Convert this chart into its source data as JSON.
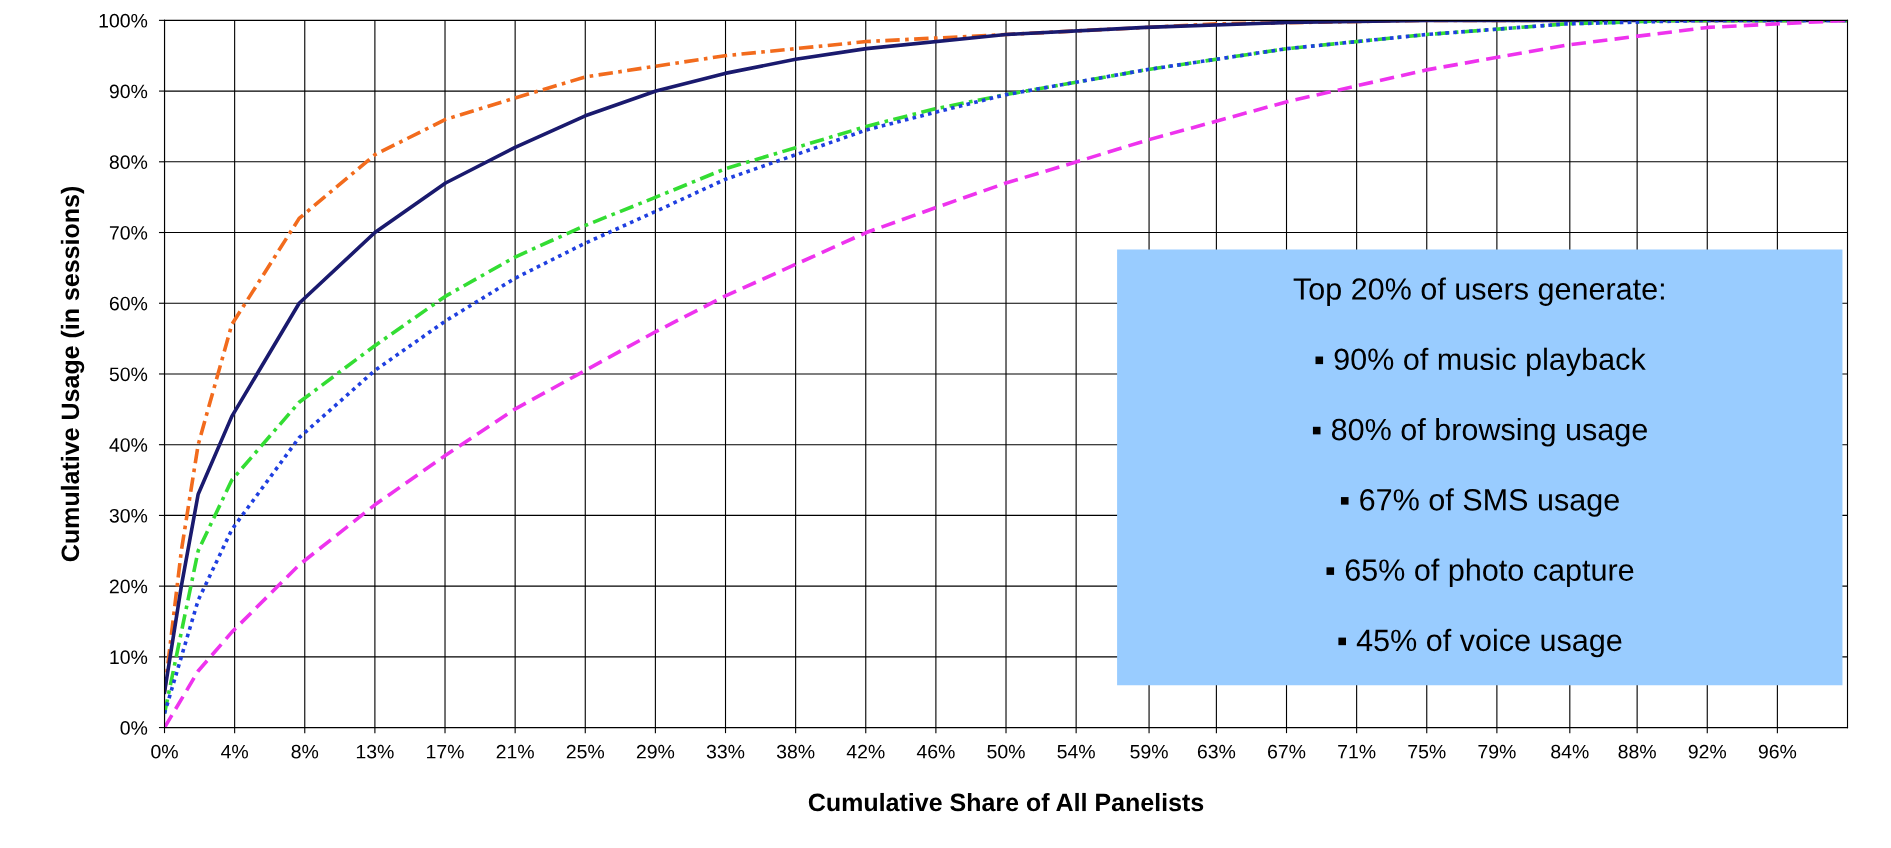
{
  "chart_data": {
    "type": "line",
    "xlabel": "Cumulative Share of All Panelists",
    "ylabel": "Cumulative Usage (in sessions)",
    "xlim": [
      0,
      100
    ],
    "ylim": [
      0,
      100
    ],
    "xticks": [
      {
        "value": 0,
        "label": "0%"
      },
      {
        "value": 4.1667,
        "label": "4%"
      },
      {
        "value": 8.3333,
        "label": "8%"
      },
      {
        "value": 12.5,
        "label": "13%"
      },
      {
        "value": 16.6667,
        "label": "17%"
      },
      {
        "value": 20.8333,
        "label": "21%"
      },
      {
        "value": 25,
        "label": "25%"
      },
      {
        "value": 29.1667,
        "label": "29%"
      },
      {
        "value": 33.3333,
        "label": "33%"
      },
      {
        "value": 37.5,
        "label": "38%"
      },
      {
        "value": 41.6667,
        "label": "42%"
      },
      {
        "value": 45.8333,
        "label": "46%"
      },
      {
        "value": 50,
        "label": "50%"
      },
      {
        "value": 54.1667,
        "label": "54%"
      },
      {
        "value": 58.5,
        "label": "59%"
      },
      {
        "value": 62.5,
        "label": "63%"
      },
      {
        "value": 66.6667,
        "label": "67%"
      },
      {
        "value": 70.8333,
        "label": "71%"
      },
      {
        "value": 75,
        "label": "75%"
      },
      {
        "value": 79.1667,
        "label": "79%"
      },
      {
        "value": 83.5,
        "label": "84%"
      },
      {
        "value": 87.5,
        "label": "88%"
      },
      {
        "value": 91.6667,
        "label": "92%"
      },
      {
        "value": 95.8333,
        "label": "96%"
      }
    ],
    "yticks": [
      {
        "value": 0,
        "label": "0%"
      },
      {
        "value": 10,
        "label": "10%"
      },
      {
        "value": 20,
        "label": "20%"
      },
      {
        "value": 30,
        "label": "30%"
      },
      {
        "value": 40,
        "label": "40%"
      },
      {
        "value": 50,
        "label": "50%"
      },
      {
        "value": 60,
        "label": "60%"
      },
      {
        "value": 70,
        "label": "70%"
      },
      {
        "value": 80,
        "label": "80%"
      },
      {
        "value": 90,
        "label": "90%"
      },
      {
        "value": 100,
        "label": "100%"
      }
    ],
    "grid": true,
    "legend": false,
    "marker": "none",
    "series": [
      {
        "color": "#f26b1d",
        "line_style": "dashdot",
        "x": [
          0,
          1,
          2,
          4,
          8,
          12.5,
          16.7,
          20.8,
          25,
          33.3,
          41.7,
          50,
          62.5,
          75,
          100
        ],
        "values": [
          5,
          25,
          40,
          57,
          72,
          81,
          86,
          89,
          92,
          95,
          97,
          98,
          99.5,
          100,
          100
        ]
      },
      {
        "color": "#1a1a6e",
        "line_style": "solid",
        "x": [
          0,
          1,
          2,
          4,
          8,
          12.5,
          16.7,
          20.8,
          25,
          29.2,
          33.3,
          37.5,
          41.7,
          50,
          58.3,
          66.7,
          75,
          100
        ],
        "values": [
          5,
          20,
          33,
          44,
          60,
          70,
          77,
          82,
          86.5,
          90,
          92.5,
          94.5,
          96,
          98,
          99,
          99.7,
          100,
          100
        ]
      },
      {
        "color": "#33dd33",
        "line_style": "dashdot",
        "x": [
          0,
          2,
          4,
          8,
          12.5,
          16.7,
          20.8,
          25,
          29.2,
          33.3,
          37.5,
          41.7,
          45.8,
          50,
          58.3,
          66.7,
          75,
          83.3,
          90,
          100
        ],
        "values": [
          2,
          25,
          35,
          46,
          54,
          61,
          66.5,
          71,
          75,
          79,
          82,
          85,
          87.5,
          89.5,
          93,
          96,
          98,
          99.5,
          100,
          100
        ]
      },
      {
        "color": "#1f3fe0",
        "line_style": "dotted",
        "x": [
          0,
          2,
          4,
          8,
          12.5,
          16.7,
          20.8,
          25,
          29.2,
          33.3,
          37.5,
          41.7,
          45.8,
          50,
          58.3,
          66.7,
          75,
          83.3,
          91.7,
          100
        ],
        "values": [
          2,
          18,
          28,
          41,
          50.5,
          57.5,
          63.5,
          68.5,
          73,
          77.5,
          81,
          84.5,
          87,
          89.5,
          93,
          96,
          98,
          99.5,
          100,
          100
        ]
      },
      {
        "color": "#ee33ee",
        "line_style": "dashed",
        "x": [
          0,
          2,
          4,
          8,
          12.5,
          16.7,
          20.8,
          25,
          29.2,
          33.3,
          37.5,
          41.7,
          45.8,
          50,
          54.2,
          58.3,
          66.7,
          75,
          83.3,
          91.7,
          100
        ],
        "values": [
          0,
          8,
          13.5,
          23,
          31.5,
          38.5,
          45,
          50.5,
          56,
          61,
          65.5,
          70,
          73.5,
          77,
          80,
          83,
          88.5,
          93,
          96.5,
          99,
          100
        ]
      }
    ],
    "annotations": [
      "Top 20% of users generate:",
      "▪ 90% of music playback",
      "▪ 80% of browsing usage",
      "▪ 67% of SMS usage",
      "▪ 65% of photo capture",
      "▪ 45% of voice usage"
    ]
  }
}
